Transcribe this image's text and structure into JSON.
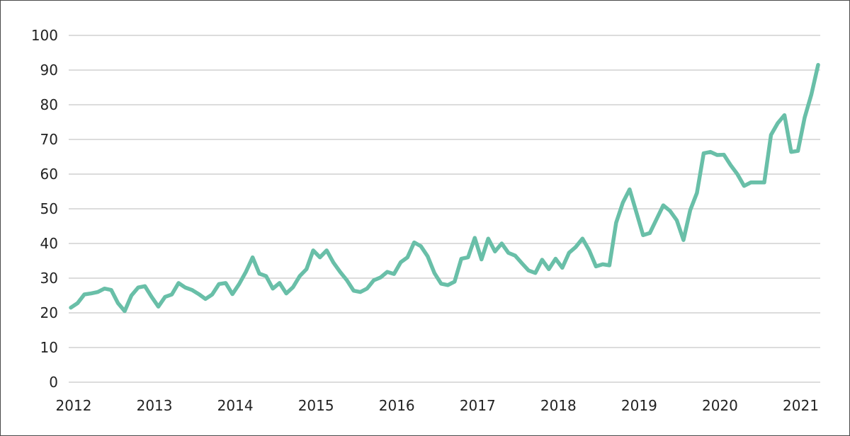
{
  "chart_data": {
    "type": "line",
    "title": "",
    "xlabel": "",
    "ylabel": "",
    "ylim": [
      0,
      100
    ],
    "yticks": [
      0,
      10,
      20,
      30,
      40,
      50,
      60,
      70,
      80,
      90,
      100
    ],
    "x_tick_labels": [
      "2012",
      "2013",
      "2014",
      "2015",
      "2016",
      "2017",
      "2018",
      "2019",
      "2020",
      "2021"
    ],
    "grid": "horizontal",
    "legend": "none",
    "series": [
      {
        "color": "#69bfa8",
        "x_start": "2012-01",
        "frequency": "monthly",
        "values": [
          21.5,
          22.8,
          25.3,
          25.6,
          26.0,
          27.0,
          26.6,
          22.8,
          20.5,
          25.0,
          27.3,
          27.7,
          24.6,
          21.8,
          24.6,
          25.3,
          28.6,
          27.3,
          26.6,
          25.4,
          24.0,
          25.3,
          28.3,
          28.6,
          25.4,
          28.3,
          31.8,
          36.0,
          31.3,
          30.6,
          27.0,
          28.6,
          25.6,
          27.4,
          30.6,
          32.6,
          38.0,
          36.0,
          38.0,
          34.5,
          31.8,
          29.4,
          26.4,
          26.0,
          27.0,
          29.4,
          30.2,
          31.8,
          31.2,
          34.6,
          36.0,
          40.3,
          39.2,
          36.3,
          31.5,
          28.4,
          28.0,
          29.0,
          35.6,
          36.0,
          41.6,
          35.4,
          41.4,
          37.7,
          40.0,
          37.3,
          36.5,
          34.3,
          32.2,
          31.5,
          35.3,
          32.6,
          35.6,
          33.0,
          37.3,
          39.0,
          41.4,
          38.0,
          33.4,
          34.0,
          33.7,
          46.0,
          51.8,
          55.6,
          49.0,
          42.4,
          43.0,
          47.0,
          51.0,
          49.4,
          46.7,
          41.0,
          49.6,
          54.6,
          66.0,
          66.4,
          65.5,
          65.6,
          62.6,
          60.0,
          56.6,
          57.6,
          57.6,
          57.6,
          71.3,
          74.7,
          77.0,
          66.4,
          66.7,
          76.3,
          83.0,
          91.5
        ]
      }
    ]
  }
}
